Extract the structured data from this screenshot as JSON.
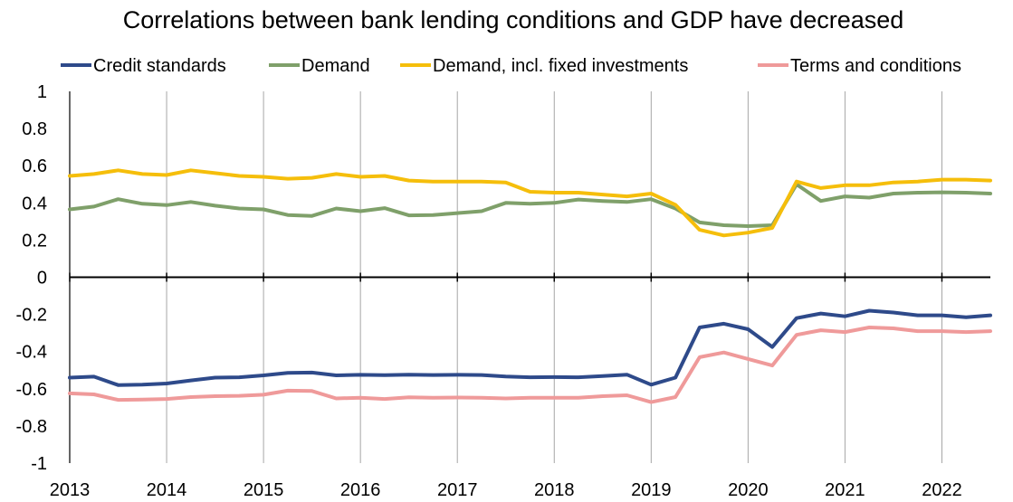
{
  "chart_data": {
    "type": "line",
    "title": "Correlations between bank lending conditions and GDP have decreased",
    "xlabel": "",
    "ylabel": "",
    "ylim": [
      -1,
      1
    ],
    "xlim": [
      2013,
      2022.5
    ],
    "yticks": [
      "1",
      "0.8",
      "0.6",
      "0.4",
      "0.2",
      "0",
      "-0.2",
      "-0.4",
      "-0.6",
      "-0.8",
      "-1"
    ],
    "yticks_values": [
      1,
      0.8,
      0.6,
      0.4,
      0.2,
      0,
      -0.2,
      -0.4,
      -0.6,
      -0.8,
      -1
    ],
    "xticks": [
      "2013",
      "2014",
      "2015",
      "2016",
      "2017",
      "2018",
      "2019",
      "2020",
      "2021",
      "2022"
    ],
    "xticks_values": [
      2013,
      2014,
      2015,
      2016,
      2017,
      2018,
      2019,
      2020,
      2021,
      2022
    ],
    "grid": "vertical",
    "legend": "top",
    "x": [
      2013.0,
      2013.25,
      2013.5,
      2013.75,
      2014.0,
      2014.25,
      2014.5,
      2014.75,
      2015.0,
      2015.25,
      2015.5,
      2015.75,
      2016.0,
      2016.25,
      2016.5,
      2016.75,
      2017.0,
      2017.25,
      2017.5,
      2017.75,
      2018.0,
      2018.25,
      2018.5,
      2018.75,
      2019.0,
      2019.25,
      2019.5,
      2019.75,
      2020.0,
      2020.25,
      2020.5,
      2020.75,
      2021.0,
      2021.25,
      2021.5,
      2021.75,
      2022.0,
      2022.25,
      2022.5
    ],
    "series": [
      {
        "name": "Credit standards",
        "color": "#2e4a8a",
        "values": [
          -0.54,
          -0.535,
          -0.58,
          -0.578,
          -0.572,
          -0.555,
          -0.54,
          -0.538,
          -0.528,
          -0.515,
          -0.513,
          -0.528,
          -0.525,
          -0.527,
          -0.524,
          -0.526,
          -0.525,
          -0.526,
          -0.534,
          -0.538,
          -0.537,
          -0.538,
          -0.532,
          -0.524,
          -0.578,
          -0.54,
          -0.27,
          -0.25,
          -0.28,
          -0.375,
          -0.22,
          -0.195,
          -0.21,
          -0.18,
          -0.19,
          -0.205,
          -0.205,
          -0.215,
          -0.205
        ]
      },
      {
        "name": "Demand",
        "color": "#7fa06a",
        "values": [
          0.365,
          0.38,
          0.42,
          0.395,
          0.388,
          0.405,
          0.385,
          0.37,
          0.365,
          0.335,
          0.33,
          0.37,
          0.355,
          0.372,
          0.333,
          0.335,
          0.345,
          0.355,
          0.4,
          0.395,
          0.4,
          0.418,
          0.41,
          0.405,
          0.42,
          0.37,
          0.295,
          0.28,
          0.275,
          0.28,
          0.5,
          0.41,
          0.435,
          0.428,
          0.45,
          0.455,
          0.457,
          0.455,
          0.45
        ]
      },
      {
        "name": "Demand, incl. fixed investments",
        "color": "#f5be0b",
        "values": [
          0.545,
          0.555,
          0.575,
          0.555,
          0.55,
          0.575,
          0.56,
          0.545,
          0.54,
          0.53,
          0.535,
          0.555,
          0.54,
          0.545,
          0.52,
          0.515,
          0.515,
          0.515,
          0.51,
          0.46,
          0.455,
          0.455,
          0.445,
          0.435,
          0.45,
          0.39,
          0.255,
          0.225,
          0.24,
          0.265,
          0.515,
          0.48,
          0.495,
          0.495,
          0.51,
          0.515,
          0.525,
          0.525,
          0.52
        ]
      },
      {
        "name": "Terms and conditions",
        "color": "#ef9a9a",
        "values": [
          -0.625,
          -0.63,
          -0.66,
          -0.658,
          -0.655,
          -0.645,
          -0.64,
          -0.638,
          -0.632,
          -0.61,
          -0.612,
          -0.652,
          -0.648,
          -0.655,
          -0.646,
          -0.648,
          -0.647,
          -0.648,
          -0.652,
          -0.648,
          -0.648,
          -0.648,
          -0.64,
          -0.635,
          -0.672,
          -0.645,
          -0.43,
          -0.405,
          -0.44,
          -0.475,
          -0.31,
          -0.285,
          -0.295,
          -0.27,
          -0.275,
          -0.29,
          -0.29,
          -0.295,
          -0.29
        ]
      }
    ]
  }
}
